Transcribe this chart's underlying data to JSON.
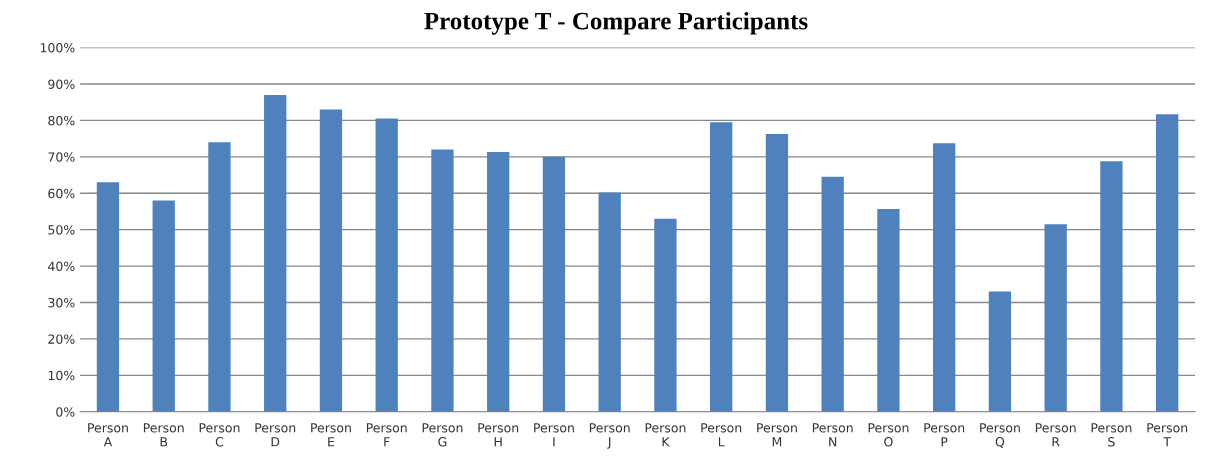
{
  "chart_data": {
    "type": "bar",
    "title": "Prototype T - Compare Participants",
    "categories": [
      "Person A",
      "Person B",
      "Person C",
      "Person D",
      "Person E",
      "Person F",
      "Person G",
      "Person H",
      "Person I",
      "Person J",
      "Person K",
      "Person L",
      "Person M",
      "Person N",
      "Person O",
      "Person P",
      "Person Q",
      "Person R",
      "Person S",
      "Person T"
    ],
    "values": [
      63,
      58,
      74,
      87,
      83,
      80.5,
      72,
      71.3,
      70,
      60.2,
      53,
      79.5,
      76.3,
      64.5,
      55.7,
      73.7,
      33,
      51.5,
      68.8,
      81.7
    ],
    "color": "#4f81bd",
    "ylim": [
      0,
      100
    ],
    "yticks": [
      {
        "value": 0,
        "label": "0%"
      },
      {
        "value": 10,
        "label": "10%"
      },
      {
        "value": 20,
        "label": "20%"
      },
      {
        "value": 30,
        "label": "30%"
      },
      {
        "value": 40,
        "label": "40%"
      },
      {
        "value": 50,
        "label": "50%"
      },
      {
        "value": 60,
        "label": "60%"
      },
      {
        "value": 70,
        "label": "70%"
      },
      {
        "value": 80,
        "label": "80%"
      },
      {
        "value": 90,
        "label": "90%"
      },
      {
        "value": 100,
        "label": "100%"
      }
    ],
    "grid": "y",
    "legend": false
  }
}
